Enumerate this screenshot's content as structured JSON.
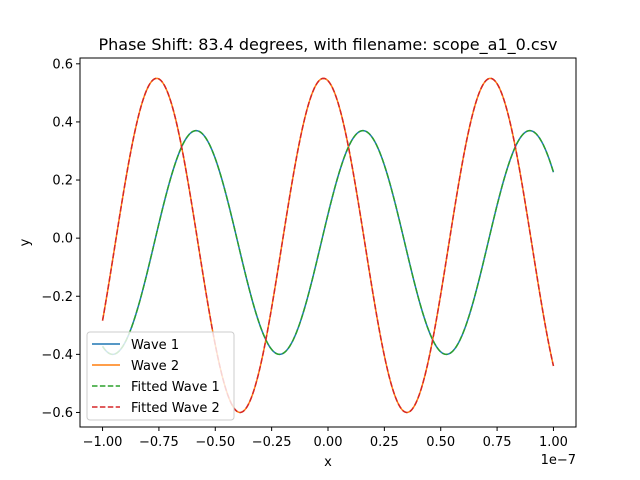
{
  "chart_data": {
    "type": "line",
    "title": "Phase Shift: 83.4 degrees, with filename: scope_a1_0.csv",
    "xlabel": "x",
    "ylabel": "y",
    "x_offset_label": "1e−7",
    "xlim": [
      -1.1e-07,
      1.1e-07
    ],
    "ylim": [
      -0.65,
      0.62
    ],
    "x_ticks": [
      -1.0,
      -0.75,
      -0.5,
      -0.25,
      0.0,
      0.25,
      0.5,
      0.75,
      1.0
    ],
    "x_tick_labels": [
      "−1.00",
      "−0.75",
      "−0.50",
      "−0.25",
      "0.00",
      "0.25",
      "0.50",
      "0.75",
      "1.00"
    ],
    "y_ticks": [
      -0.6,
      -0.4,
      -0.2,
      0.0,
      0.2,
      0.4,
      0.6
    ],
    "y_tick_labels": [
      "−0.6",
      "−0.4",
      "−0.2",
      "0.0",
      "0.2",
      "0.4",
      "0.6"
    ],
    "grid": false,
    "legend_position": "lower-left",
    "x_range": [
      -1e-07,
      1e-07
    ],
    "series": [
      {
        "name": "Wave 1",
        "color": "#1f77b4",
        "style": "solid",
        "model": {
          "amplitude": 0.385,
          "offset": -0.015,
          "period_s": 7.4e-08,
          "peak_at_s": 1.55e-08
        }
      },
      {
        "name": "Wave 2",
        "color": "#ff7f0e",
        "style": "solid",
        "model": {
          "amplitude": 0.575,
          "offset": -0.025,
          "period_s": 7.4e-08,
          "peak_at_s": -2e-09
        }
      },
      {
        "name": "Fitted Wave 1",
        "color": "#2ca02c",
        "style": "dashed",
        "model": {
          "amplitude": 0.385,
          "offset": -0.015,
          "period_s": 7.4e-08,
          "peak_at_s": 1.55e-08
        }
      },
      {
        "name": "Fitted Wave 2",
        "color": "#d62728",
        "style": "dashed",
        "model": {
          "amplitude": 0.575,
          "offset": -0.025,
          "period_s": 7.4e-08,
          "peak_at_s": -2e-09
        }
      }
    ]
  }
}
